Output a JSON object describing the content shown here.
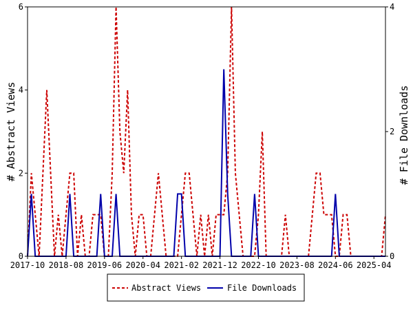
{
  "chart_data": {
    "type": "line",
    "x_dates": [
      "2017-10",
      "2017-11",
      "2017-12",
      "2018-01",
      "2018-02",
      "2018-03",
      "2018-04",
      "2018-05",
      "2018-06",
      "2018-07",
      "2018-08",
      "2018-09",
      "2018-10",
      "2018-11",
      "2018-12",
      "2019-01",
      "2019-02",
      "2019-03",
      "2019-04",
      "2019-05",
      "2019-06",
      "2019-07",
      "2019-08",
      "2019-09",
      "2019-10",
      "2019-11",
      "2019-12",
      "2020-01",
      "2020-02",
      "2020-03",
      "2020-04",
      "2020-05",
      "2020-06",
      "2020-07",
      "2020-08",
      "2020-09",
      "2020-10",
      "2020-11",
      "2020-12",
      "2021-01",
      "2021-02",
      "2021-03",
      "2021-04",
      "2021-05",
      "2021-06",
      "2021-07",
      "2021-08",
      "2021-09",
      "2021-10",
      "2021-11",
      "2021-12",
      "2022-01",
      "2022-02",
      "2022-03",
      "2022-04",
      "2022-05",
      "2022-06",
      "2022-07",
      "2022-08",
      "2022-09",
      "2022-10",
      "2022-11",
      "2022-12",
      "2023-01",
      "2023-02",
      "2023-03",
      "2023-04",
      "2023-05",
      "2023-06",
      "2023-07",
      "2023-08",
      "2023-09",
      "2023-10",
      "2023-11",
      "2023-12",
      "2024-01",
      "2024-02",
      "2024-03",
      "2024-04",
      "2024-05",
      "2024-06",
      "2024-07",
      "2024-08",
      "2024-09",
      "2024-10",
      "2024-11",
      "2024-12",
      "2025-01",
      "2025-02",
      "2025-03",
      "2025-04",
      "2025-05",
      "2025-06",
      "2025-07"
    ],
    "x_ticks": [
      "2017-10",
      "2018-08",
      "2019-06",
      "2020-04",
      "2021-02",
      "2021-12",
      "2022-10",
      "2023-08",
      "2024-06",
      "2025-04"
    ],
    "left_axis": {
      "label": "# Abstract Views",
      "ylim": [
        0,
        6
      ],
      "ticks": [
        "0",
        "2",
        "4",
        "6"
      ]
    },
    "right_axis": {
      "label": "# File Downloads",
      "ylim": [
        0,
        4
      ],
      "ticks": [
        "0",
        "2",
        "4"
      ]
    },
    "series": [
      {
        "name": "Abstract Views",
        "axis": "left",
        "color": "#cc0000",
        "style": "dashed",
        "values": [
          0,
          2,
          1,
          0,
          2,
          4,
          2,
          0,
          1,
          0,
          1,
          2,
          2,
          0,
          1,
          0,
          0,
          1,
          1,
          1,
          0,
          0,
          2,
          6,
          3,
          2,
          4,
          1,
          0,
          1,
          1,
          0,
          0,
          1,
          2,
          1,
          0,
          0,
          0,
          0,
          1,
          2,
          2,
          1,
          0,
          1,
          0,
          1,
          0,
          1,
          1,
          1,
          2,
          6,
          2,
          1,
          0,
          0,
          0,
          0,
          1,
          3,
          0,
          0,
          0,
          0,
          0,
          1,
          0,
          0,
          0,
          0,
          0,
          0,
          1,
          2,
          2,
          1,
          1,
          1,
          0,
          0,
          1,
          1,
          0,
          0,
          0,
          0,
          0,
          0,
          0,
          0,
          0,
          1
        ]
      },
      {
        "name": "File Downloads",
        "axis": "right",
        "color": "#0000aa",
        "style": "solid",
        "values": [
          0,
          1,
          0,
          0,
          0,
          0,
          0,
          0,
          0,
          0,
          0,
          1,
          0,
          0,
          0,
          0,
          0,
          0,
          0,
          1,
          0,
          0,
          0,
          1,
          0,
          0,
          0,
          0,
          0,
          0,
          0,
          0,
          0,
          0,
          0,
          0,
          0,
          0,
          0,
          1,
          1,
          0,
          0,
          0,
          0,
          0,
          0,
          0,
          0,
          0,
          0,
          3,
          1,
          0,
          0,
          0,
          0,
          0,
          0,
          1,
          0,
          0,
          0,
          0,
          0,
          0,
          0,
          0,
          0,
          0,
          0,
          0,
          0,
          0,
          0,
          0,
          0,
          0,
          0,
          0,
          1,
          0,
          0,
          0,
          0,
          0,
          0,
          0,
          0,
          0,
          0,
          0,
          0,
          0
        ]
      }
    ],
    "grid": false,
    "legend": {
      "position": "bottom-center",
      "items": [
        "Abstract Views",
        "File Downloads"
      ]
    }
  }
}
